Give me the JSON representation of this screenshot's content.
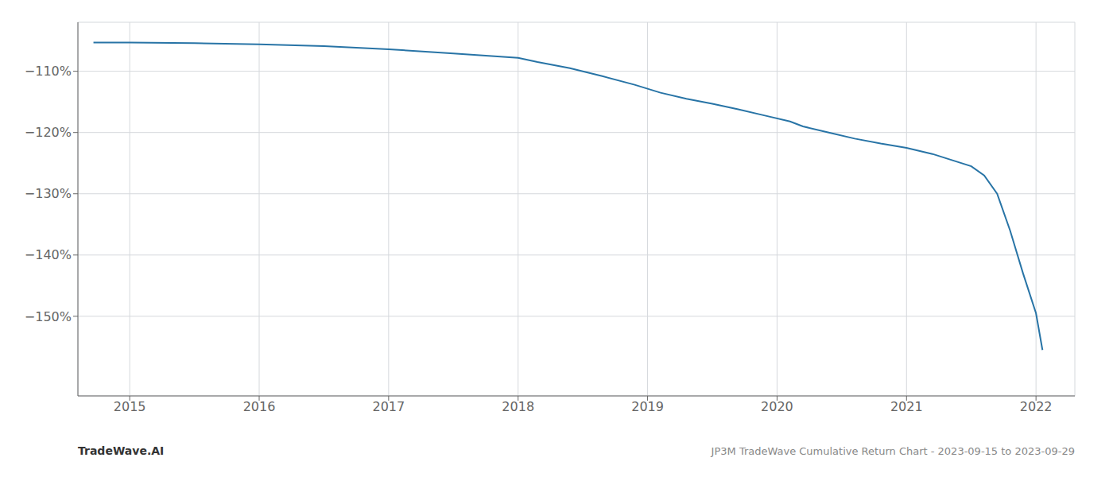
{
  "chart_data": {
    "type": "line",
    "x": [
      2014.72,
      2015.0,
      2015.5,
      2016.0,
      2016.5,
      2017.0,
      2017.5,
      2018.0,
      2018.15,
      2018.4,
      2018.65,
      2018.9,
      2019.1,
      2019.3,
      2019.5,
      2019.7,
      2019.9,
      2020.1,
      2020.2,
      2020.4,
      2020.6,
      2020.8,
      2021.0,
      2021.2,
      2021.35,
      2021.5,
      2021.6,
      2021.7,
      2021.8,
      2021.9,
      2022.0,
      2022.05
    ],
    "values": [
      -105.3,
      -105.3,
      -105.4,
      -105.6,
      -105.9,
      -106.4,
      -107.1,
      -107.8,
      -108.5,
      -109.5,
      -110.8,
      -112.2,
      -113.5,
      -114.5,
      -115.3,
      -116.2,
      -117.2,
      -118.2,
      -119.0,
      -120.0,
      -121.0,
      -121.8,
      -122.5,
      -123.5,
      -124.5,
      -125.5,
      -127.0,
      -130.0,
      -136.0,
      -143.0,
      -149.5,
      -155.5
    ],
    "color": "#2874a6",
    "xlim": [
      2014.6,
      2022.3
    ],
    "xticks": [
      2015,
      2016,
      2017,
      2018,
      2019,
      2020,
      2021,
      2022
    ],
    "ylim": [
      -163,
      -102
    ],
    "yticks": [
      {
        "value": -110,
        "label": "−110%"
      },
      {
        "value": -120,
        "label": "−120%"
      },
      {
        "value": -130,
        "label": "−130%"
      },
      {
        "value": -140,
        "label": "−140%"
      },
      {
        "value": -150,
        "label": "−150%"
      }
    ],
    "grid": true,
    "annotations": [
      "TradeWave.AI",
      "JP3M TradeWave Cumulative Return Chart - 2023-09-15 to 2023-09-29"
    ]
  }
}
